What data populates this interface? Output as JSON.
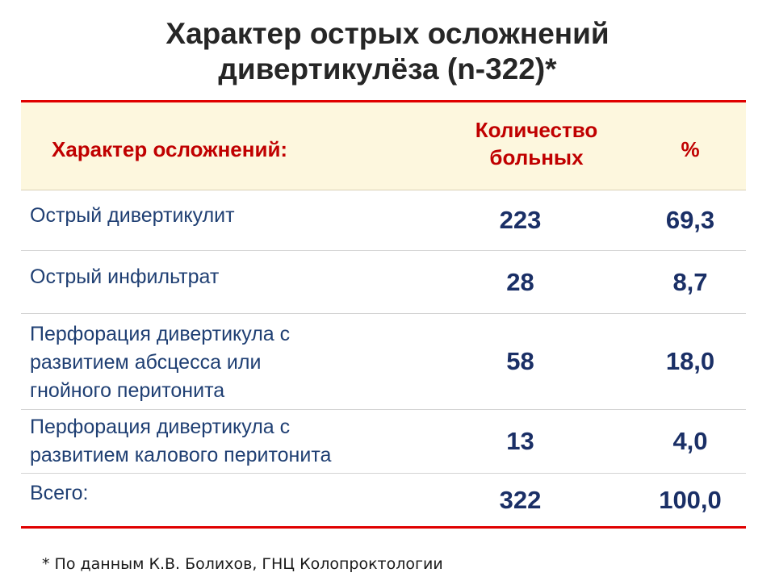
{
  "title": {
    "line1": "Характер острых осложнений",
    "line2": "дивертикулёза (n-322)*"
  },
  "table": {
    "headers": {
      "type": "Характер осложнений:",
      "count_line1": "Количество",
      "count_line2": "больных",
      "percent": "%"
    },
    "rows": [
      {
        "lines": [
          "Острый дивертикулит"
        ],
        "count": "223",
        "percent": "69,3"
      },
      {
        "lines": [
          "Острый инфильтрат"
        ],
        "count": "28",
        "percent": "8,7"
      },
      {
        "lines": [
          "Перфорация дивертикула с",
          "развитием абсцесса или",
          "гнойного перитонита"
        ],
        "count": "58",
        "percent": "18,0"
      },
      {
        "lines": [
          "Перфорация дивертикула с",
          "развитием калового перитонита"
        ],
        "count": "13",
        "percent": "4,0"
      },
      {
        "lines": [
          "Всего:"
        ],
        "count": "322",
        "percent": "100,0"
      }
    ]
  },
  "footnote": "* По данным К.В. Болихов, ГНЦ Колопроктологии",
  "colors": {
    "header_text": "#c00000",
    "header_bg": "#fdf7de",
    "border_accent": "#e00000",
    "body_text": "#1f3f73",
    "title_text": "#262626"
  }
}
